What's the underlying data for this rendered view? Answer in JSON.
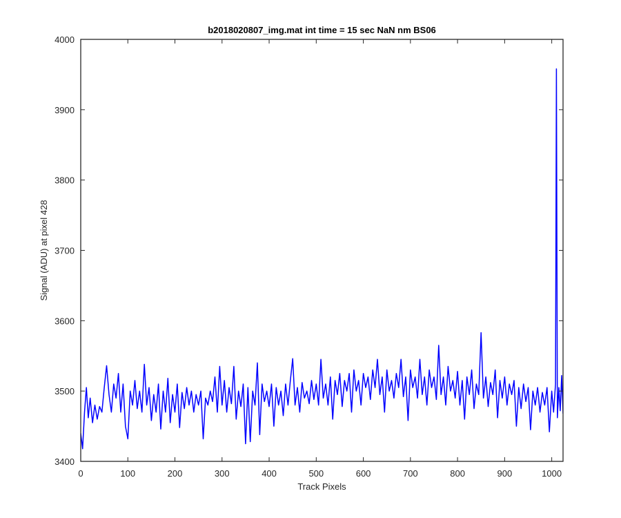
{
  "chart_data": {
    "type": "line",
    "title": "b2018020807_img.mat int time = 15 sec  NaN nm BS06",
    "xlabel": "Track Pixels",
    "ylabel": "Signal (ADU) at pixel 428",
    "xlim": [
      0,
      1024
    ],
    "ylim": [
      3400,
      4000
    ],
    "xticks": [
      0,
      100,
      200,
      300,
      400,
      500,
      600,
      700,
      800,
      900,
      1000
    ],
    "yticks": [
      3400,
      3500,
      3600,
      3700,
      3800,
      3900,
      4000
    ],
    "grid": false,
    "legend": "none",
    "series": [
      {
        "color": "#0000ff",
        "points": [
          [
            0,
            3440
          ],
          [
            4,
            3418
          ],
          [
            8,
            3470
          ],
          [
            12,
            3505
          ],
          [
            16,
            3462
          ],
          [
            20,
            3490
          ],
          [
            25,
            3455
          ],
          [
            30,
            3480
          ],
          [
            35,
            3460
          ],
          [
            40,
            3478
          ],
          [
            45,
            3470
          ],
          [
            50,
            3505
          ],
          [
            55,
            3536
          ],
          [
            60,
            3495
          ],
          [
            65,
            3470
          ],
          [
            70,
            3510
          ],
          [
            75,
            3490
          ],
          [
            80,
            3525
          ],
          [
            85,
            3470
          ],
          [
            90,
            3510
          ],
          [
            95,
            3450
          ],
          [
            100,
            3432
          ],
          [
            105,
            3500
          ],
          [
            110,
            3480
          ],
          [
            115,
            3515
          ],
          [
            120,
            3475
          ],
          [
            125,
            3500
          ],
          [
            130,
            3470
          ],
          [
            135,
            3538
          ],
          [
            140,
            3480
          ],
          [
            145,
            3505
          ],
          [
            150,
            3458
          ],
          [
            155,
            3495
          ],
          [
            160,
            3470
          ],
          [
            165,
            3510
          ],
          [
            170,
            3446
          ],
          [
            175,
            3500
          ],
          [
            180,
            3470
          ],
          [
            185,
            3518
          ],
          [
            190,
            3455
          ],
          [
            195,
            3495
          ],
          [
            200,
            3470
          ],
          [
            205,
            3510
          ],
          [
            210,
            3448
          ],
          [
            215,
            3498
          ],
          [
            220,
            3475
          ],
          [
            225,
            3505
          ],
          [
            230,
            3480
          ],
          [
            235,
            3500
          ],
          [
            240,
            3470
          ],
          [
            245,
            3495
          ],
          [
            250,
            3480
          ],
          [
            255,
            3500
          ],
          [
            260,
            3432
          ],
          [
            265,
            3490
          ],
          [
            270,
            3480
          ],
          [
            275,
            3500
          ],
          [
            280,
            3485
          ],
          [
            285,
            3520
          ],
          [
            290,
            3470
          ],
          [
            295,
            3535
          ],
          [
            300,
            3480
          ],
          [
            305,
            3515
          ],
          [
            310,
            3470
          ],
          [
            315,
            3505
          ],
          [
            320,
            3482
          ],
          [
            325,
            3535
          ],
          [
            330,
            3460
          ],
          [
            335,
            3500
          ],
          [
            340,
            3478
          ],
          [
            345,
            3510
          ],
          [
            350,
            3425
          ],
          [
            355,
            3505
          ],
          [
            360,
            3428
          ],
          [
            365,
            3500
          ],
          [
            370,
            3480
          ],
          [
            375,
            3540
          ],
          [
            380,
            3438
          ],
          [
            385,
            3510
          ],
          [
            390,
            3485
          ],
          [
            395,
            3500
          ],
          [
            400,
            3478
          ],
          [
            405,
            3510
          ],
          [
            410,
            3450
          ],
          [
            415,
            3505
          ],
          [
            420,
            3480
          ],
          [
            425,
            3500
          ],
          [
            430,
            3465
          ],
          [
            435,
            3510
          ],
          [
            440,
            3480
          ],
          [
            445,
            3515
          ],
          [
            450,
            3546
          ],
          [
            455,
            3480
          ],
          [
            460,
            3505
          ],
          [
            465,
            3470
          ],
          [
            470,
            3512
          ],
          [
            475,
            3490
          ],
          [
            480,
            3500
          ],
          [
            485,
            3482
          ],
          [
            490,
            3515
          ],
          [
            495,
            3488
          ],
          [
            500,
            3510
          ],
          [
            505,
            3480
          ],
          [
            510,
            3545
          ],
          [
            515,
            3490
          ],
          [
            520,
            3510
          ],
          [
            525,
            3480
          ],
          [
            530,
            3520
          ],
          [
            535,
            3460
          ],
          [
            540,
            3515
          ],
          [
            545,
            3495
          ],
          [
            550,
            3525
          ],
          [
            555,
            3478
          ],
          [
            560,
            3515
          ],
          [
            565,
            3500
          ],
          [
            570,
            3525
          ],
          [
            575,
            3470
          ],
          [
            580,
            3530
          ],
          [
            585,
            3500
          ],
          [
            590,
            3515
          ],
          [
            595,
            3480
          ],
          [
            600,
            3525
          ],
          [
            605,
            3505
          ],
          [
            610,
            3520
          ],
          [
            615,
            3488
          ],
          [
            620,
            3530
          ],
          [
            625,
            3505
          ],
          [
            630,
            3545
          ],
          [
            635,
            3495
          ],
          [
            640,
            3520
          ],
          [
            645,
            3470
          ],
          [
            650,
            3530
          ],
          [
            655,
            3500
          ],
          [
            660,
            3515
          ],
          [
            665,
            3490
          ],
          [
            670,
            3525
          ],
          [
            675,
            3505
          ],
          [
            680,
            3545
          ],
          [
            685,
            3492
          ],
          [
            690,
            3520
          ],
          [
            695,
            3458
          ],
          [
            700,
            3530
          ],
          [
            705,
            3505
          ],
          [
            710,
            3520
          ],
          [
            715,
            3490
          ],
          [
            720,
            3545
          ],
          [
            725,
            3495
          ],
          [
            730,
            3520
          ],
          [
            735,
            3480
          ],
          [
            740,
            3530
          ],
          [
            745,
            3505
          ],
          [
            750,
            3520
          ],
          [
            755,
            3488
          ],
          [
            760,
            3565
          ],
          [
            765,
            3495
          ],
          [
            770,
            3520
          ],
          [
            775,
            3480
          ],
          [
            780,
            3535
          ],
          [
            785,
            3500
          ],
          [
            790,
            3515
          ],
          [
            795,
            3490
          ],
          [
            800,
            3528
          ],
          [
            805,
            3480
          ],
          [
            810,
            3515
          ],
          [
            815,
            3460
          ],
          [
            820,
            3520
          ],
          [
            825,
            3495
          ],
          [
            830,
            3530
          ],
          [
            835,
            3475
          ],
          [
            840,
            3510
          ],
          [
            845,
            3495
          ],
          [
            850,
            3583
          ],
          [
            855,
            3490
          ],
          [
            860,
            3520
          ],
          [
            865,
            3478
          ],
          [
            870,
            3512
          ],
          [
            875,
            3495
          ],
          [
            880,
            3530
          ],
          [
            885,
            3462
          ],
          [
            890,
            3515
          ],
          [
            895,
            3490
          ],
          [
            900,
            3520
          ],
          [
            905,
            3480
          ],
          [
            910,
            3510
          ],
          [
            915,
            3495
          ],
          [
            920,
            3515
          ],
          [
            925,
            3450
          ],
          [
            930,
            3505
          ],
          [
            935,
            3475
          ],
          [
            940,
            3510
          ],
          [
            945,
            3485
          ],
          [
            950,
            3505
          ],
          [
            955,
            3445
          ],
          [
            960,
            3500
          ],
          [
            965,
            3480
          ],
          [
            970,
            3505
          ],
          [
            975,
            3470
          ],
          [
            980,
            3498
          ],
          [
            985,
            3480
          ],
          [
            990,
            3505
          ],
          [
            995,
            3442
          ],
          [
            1000,
            3500
          ],
          [
            1004,
            3470
          ],
          [
            1008,
            3510
          ],
          [
            1010,
            3958
          ],
          [
            1012,
            3462
          ],
          [
            1015,
            3505
          ],
          [
            1018,
            3472
          ],
          [
            1021,
            3522
          ],
          [
            1024,
            3468
          ]
        ]
      }
    ]
  }
}
